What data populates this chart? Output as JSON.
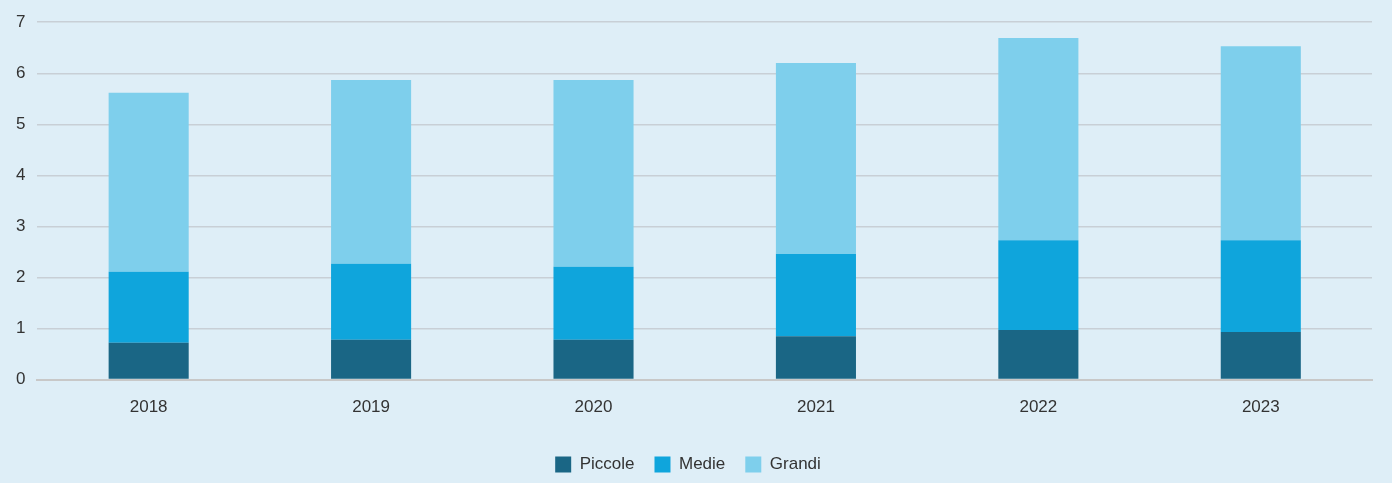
{
  "chart_data": {
    "type": "bar",
    "stacked": true,
    "categories": [
      "2018",
      "2019",
      "2020",
      "2021",
      "2022",
      "2023"
    ],
    "series": [
      {
        "name": "Piccole",
        "color": "#1a6685",
        "values": [
          0.72,
          0.78,
          0.78,
          0.85,
          0.97,
          0.93
        ]
      },
      {
        "name": "Medie",
        "color": "#0fa5dc",
        "values": [
          1.39,
          1.49,
          1.43,
          1.61,
          1.76,
          1.8
        ]
      },
      {
        "name": "Grandi",
        "color": "#7ecfec",
        "values": [
          3.51,
          3.6,
          3.66,
          3.74,
          3.96,
          3.8
        ]
      }
    ],
    "ylim": [
      0,
      7
    ],
    "yticks": [
      0,
      1,
      2,
      3,
      4,
      5,
      6,
      7
    ],
    "grid": "y",
    "legend": "bottom"
  }
}
